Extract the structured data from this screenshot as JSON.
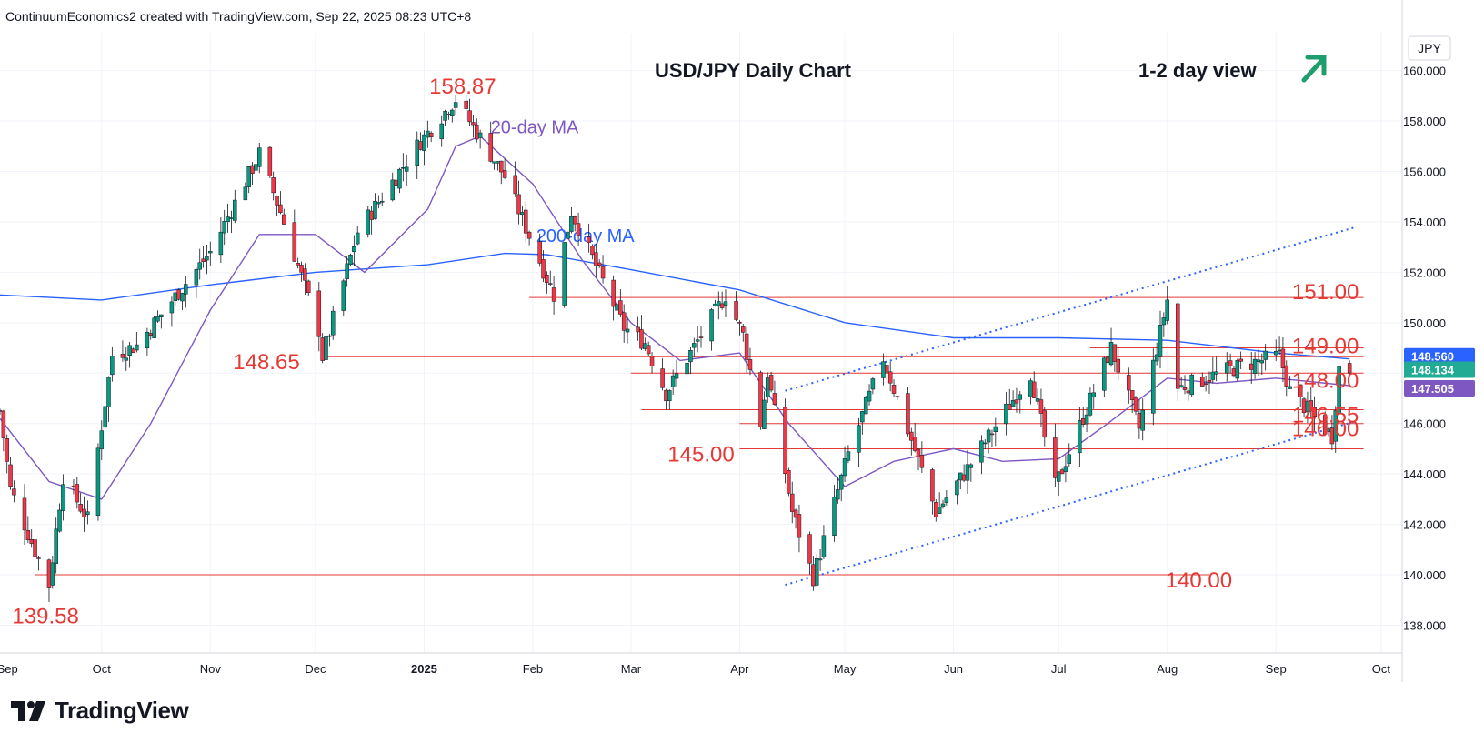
{
  "header": {
    "attribution": "ContinuumEconomics2 created with TradingView.com, Sep 22, 2025 08:23 UTC+8"
  },
  "footer": {
    "brand": "TradingView"
  },
  "chart_data": {
    "type": "candlestick",
    "title": "USD/JPY Daily Chart",
    "view_label": "1-2 day view",
    "view_direction": "up",
    "currency": "JPY",
    "ylim": [
      136.9,
      161.5
    ],
    "y_ticks": [
      "138.000",
      "140.000",
      "142.000",
      "144.000",
      "146.000",
      "148.000",
      "150.000",
      "152.000",
      "154.000",
      "156.000",
      "158.000",
      "160.000"
    ],
    "x_ticks": [
      "Sep",
      "Oct",
      "Nov",
      "Dec",
      "2025",
      "Feb",
      "Mar",
      "Apr",
      "May",
      "Jun",
      "Jul",
      "Aug",
      "Sep",
      "Oct"
    ],
    "date_range": [
      "2024-09-02",
      "2025-10-07"
    ],
    "ma_labels": {
      "ma20": "20-day MA",
      "ma200": "200-day MA"
    },
    "levels": [
      {
        "label": "158.87",
        "value": 158.87
      },
      {
        "label": "151.00",
        "value": 151.0
      },
      {
        "label": "149.00",
        "value": 149.0
      },
      {
        "label": "148.65",
        "value": 148.65
      },
      {
        "label": "148.00",
        "value": 148.0
      },
      {
        "label": "146.55",
        "value": 146.55
      },
      {
        "label": "146.00",
        "value": 146.0
      },
      {
        "label": "145.00",
        "value": 145.0
      },
      {
        "label": "140.00",
        "value": 140.0
      },
      {
        "label": "139.58",
        "value": 139.58
      }
    ],
    "price_badges": [
      {
        "label": "148.560",
        "value": 148.56,
        "color": "#2962ff"
      },
      {
        "label": "148.134",
        "value": 148.134,
        "color": "#22ab94"
      },
      {
        "label": "147.505",
        "value": 147.505,
        "color": "#7e57c2"
      }
    ],
    "trendlines": [
      {
        "name": "upper-channel",
        "points": [
          [
            "2025-04-14",
            147.3
          ],
          [
            "2025-09-24",
            153.8
          ]
        ]
      },
      {
        "name": "lower-channel",
        "points": [
          [
            "2025-04-14",
            139.6
          ],
          [
            "2025-09-24",
            146.1
          ]
        ]
      }
    ],
    "ma200": [
      [
        "2024-09-02",
        151.1
      ],
      [
        "2024-10-01",
        150.9
      ],
      [
        "2024-11-01",
        151.5
      ],
      [
        "2024-12-01",
        152.0
      ],
      [
        "2025-01-02",
        152.3
      ],
      [
        "2025-01-24",
        152.75
      ],
      [
        "2025-02-05",
        152.7
      ],
      [
        "2025-03-01",
        152.1
      ],
      [
        "2025-04-01",
        151.3
      ],
      [
        "2025-05-01",
        150.0
      ],
      [
        "2025-06-01",
        149.4
      ],
      [
        "2025-07-01",
        149.4
      ],
      [
        "2025-08-01",
        149.3
      ],
      [
        "2025-09-01",
        148.8
      ],
      [
        "2025-09-22",
        148.56
      ]
    ],
    "ma20": [
      [
        "2024-09-02",
        146.2
      ],
      [
        "2024-09-16",
        143.7
      ],
      [
        "2024-10-01",
        143.0
      ],
      [
        "2024-10-15",
        146.0
      ],
      [
        "2024-11-01",
        150.5
      ],
      [
        "2024-11-15",
        153.5
      ],
      [
        "2024-12-01",
        153.5
      ],
      [
        "2024-12-15",
        152.0
      ],
      [
        "2025-01-02",
        154.5
      ],
      [
        "2025-01-10",
        157.0
      ],
      [
        "2025-01-17",
        157.4
      ],
      [
        "2025-02-01",
        155.5
      ],
      [
        "2025-02-15",
        152.5
      ],
      [
        "2025-03-01",
        150.0
      ],
      [
        "2025-03-15",
        148.5
      ],
      [
        "2025-04-01",
        148.8
      ],
      [
        "2025-04-15",
        146.0
      ],
      [
        "2025-05-01",
        143.5
      ],
      [
        "2025-05-15",
        144.5
      ],
      [
        "2025-06-01",
        145.0
      ],
      [
        "2025-06-15",
        144.5
      ],
      [
        "2025-07-01",
        144.6
      ],
      [
        "2025-07-15",
        146.0
      ],
      [
        "2025-08-01",
        147.8
      ],
      [
        "2025-08-15",
        147.6
      ],
      [
        "2025-09-01",
        147.8
      ],
      [
        "2025-09-22",
        147.505
      ]
    ],
    "price_path": [
      [
        "2024-09-02",
        146.5
      ],
      [
        "2024-09-05",
        143.4
      ],
      [
        "2024-09-13",
        140.6
      ],
      [
        "2024-09-16",
        139.58
      ],
      [
        "2024-09-20",
        143.9
      ],
      [
        "2024-09-27",
        142.2
      ],
      [
        "2024-10-04",
        148.7
      ],
      [
        "2024-10-11",
        149.1
      ],
      [
        "2024-11-01",
        152.8
      ],
      [
        "2024-11-15",
        156.7
      ],
      [
        "2024-11-21",
        154.4
      ],
      [
        "2024-12-02",
        149.7
      ],
      [
        "2024-12-03",
        148.65
      ],
      [
        "2024-12-13",
        153.6
      ],
      [
        "2024-12-31",
        157.2
      ],
      [
        "2025-01-10",
        158.87
      ],
      [
        "2025-01-24",
        155.8
      ],
      [
        "2025-02-07",
        151.1
      ],
      [
        "2025-02-12",
        154.4
      ],
      [
        "2025-02-27",
        149.8
      ],
      [
        "2025-03-05",
        149.2
      ],
      [
        "2025-03-11",
        147.2
      ],
      [
        "2025-03-28",
        151.1
      ],
      [
        "2025-04-02",
        149.5
      ],
      [
        "2025-04-07",
        146.0
      ],
      [
        "2025-04-09",
        148.0
      ],
      [
        "2025-04-16",
        142.5
      ],
      [
        "2025-04-22",
        139.9
      ],
      [
        "2025-05-02",
        144.8
      ],
      [
        "2025-05-12",
        148.6
      ],
      [
        "2025-05-27",
        142.5
      ],
      [
        "2025-06-04",
        144.0
      ],
      [
        "2025-06-23",
        148.0
      ],
      [
        "2025-06-30",
        143.5
      ],
      [
        "2025-07-16",
        149.0
      ],
      [
        "2025-07-24",
        145.8
      ],
      [
        "2025-08-01",
        150.9
      ],
      [
        "2025-08-04",
        147.4
      ],
      [
        "2025-08-20",
        148.2
      ],
      [
        "2025-09-02",
        148.7
      ],
      [
        "2025-09-05",
        147.3
      ],
      [
        "2025-09-17",
        145.5
      ],
      [
        "2025-09-19",
        148.2
      ],
      [
        "2025-09-22",
        148.134
      ]
    ]
  }
}
